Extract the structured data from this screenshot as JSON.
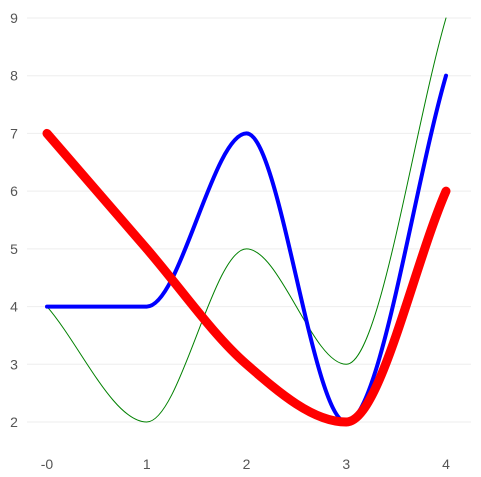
{
  "chart_data": {
    "type": "line",
    "title": "",
    "xlabel": "",
    "ylabel": "",
    "x_ticks": [
      {
        "value": 0,
        "label": "-0"
      },
      {
        "value": 1,
        "label": "1"
      },
      {
        "value": 2,
        "label": "2"
      },
      {
        "value": 3,
        "label": "3"
      },
      {
        "value": 4,
        "label": "4"
      }
    ],
    "y_ticks": [
      {
        "value": 2,
        "label": "2"
      },
      {
        "value": 3,
        "label": "3"
      },
      {
        "value": 4,
        "label": "4"
      },
      {
        "value": 5,
        "label": "5"
      },
      {
        "value": 6,
        "label": "6"
      },
      {
        "value": 7,
        "label": "7"
      },
      {
        "value": 8,
        "label": "8"
      },
      {
        "value": 9,
        "label": "9"
      }
    ],
    "xlim": [
      0,
      4
    ],
    "ylim": [
      1.6,
      9.0
    ],
    "grid": "horizontal",
    "legend": "none",
    "series": [
      {
        "color": "#0000ff",
        "width_hint": "medium",
        "x": [
          0,
          1,
          2,
          3,
          4
        ],
        "values": [
          4,
          4,
          7,
          2,
          8
        ]
      },
      {
        "color": "#ff0000",
        "width_hint": "thick",
        "x": [
          0,
          1,
          2,
          3,
          4
        ],
        "values": [
          7,
          5,
          3,
          2,
          6
        ]
      },
      {
        "color": "#008000",
        "width_hint": "thin",
        "x": [
          0,
          1,
          2,
          3,
          4
        ],
        "values": [
          4,
          2,
          5,
          3,
          9
        ]
      }
    ]
  }
}
